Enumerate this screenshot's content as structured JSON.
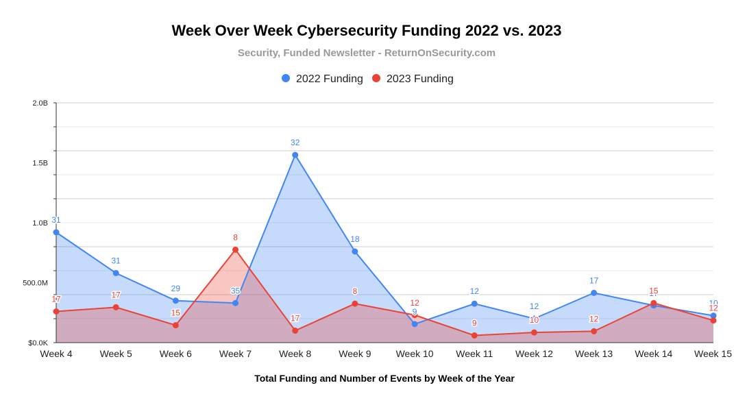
{
  "chart_data": {
    "type": "area",
    "title": "Week Over Week Cybersecurity Funding 2022 vs. 2023",
    "subtitle": "Security, Funded Newsletter - ReturnOnSecurity.com",
    "xlabel": "Total Funding and Number of Events by Week of the Year",
    "ylabel": "",
    "categories": [
      "Week 4",
      "Week 5",
      "Week 6",
      "Week 7",
      "Week 8",
      "Week 9",
      "Week 10",
      "Week 11",
      "Week 12",
      "Week 13",
      "Week 14",
      "Week 15"
    ],
    "y_ticks": [
      {
        "value": 0,
        "label": "$0.0K"
      },
      {
        "value": 500,
        "label": "500.0M"
      },
      {
        "value": 1000,
        "label": "1.0B"
      },
      {
        "value": 1500,
        "label": "1.5B"
      },
      {
        "value": 2000,
        "label": "2.0B"
      }
    ],
    "ylim": [
      0,
      2000
    ],
    "y_units": "millions USD",
    "grid": true,
    "legend_position": "top",
    "series": [
      {
        "name": "2022 Funding",
        "color": "#4285F4",
        "fill": "#c5d8f7",
        "values": [
          920,
          580,
          350,
          330,
          1565,
          760,
          155,
          325,
          200,
          415,
          310,
          225
        ],
        "labels": [
          "31",
          "31",
          "29",
          "35",
          "32",
          "18",
          "9",
          "12",
          "12",
          "17",
          "17",
          "10"
        ]
      },
      {
        "name": "2023 Funding",
        "color": "#EA4335",
        "fill": "#f4b5b0",
        "values": [
          260,
          295,
          145,
          775,
          100,
          325,
          230,
          60,
          85,
          95,
          330,
          185
        ],
        "labels": [
          "17",
          "17",
          "15",
          "8",
          "17",
          "8",
          "12",
          "9",
          "10",
          "12",
          "15",
          "12"
        ]
      }
    ]
  }
}
